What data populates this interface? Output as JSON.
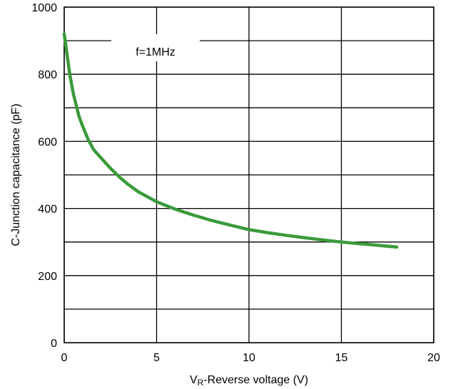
{
  "chart_data": {
    "type": "line",
    "xlabel_main": "V",
    "xlabel_sub": "R",
    "xlabel_rest": "-Reverse voltage (V)",
    "ylabel": "C-Junction capacitance (pF)",
    "annotation": "f=1MHz",
    "xlim": [
      0,
      20
    ],
    "ylim": [
      0,
      1000
    ],
    "x_ticks": [
      0,
      5,
      10,
      15,
      20
    ],
    "y_ticks": [
      0,
      200,
      400,
      600,
      800,
      1000
    ],
    "grid": true,
    "line_color": "#3a9a3a",
    "series": [
      {
        "x": [
          0,
          0.1,
          0.3,
          0.5,
          0.8,
          1.0,
          1.3,
          1.6,
          2.0,
          2.5,
          3.0,
          3.5,
          4.0,
          5.0,
          6.0,
          7.0,
          8.0,
          9.0,
          10.0,
          11.0,
          12.0,
          13.0,
          14.0,
          15.0,
          16.0,
          17.0,
          18.0
        ],
        "y": [
          920,
          880,
          800,
          740,
          675,
          645,
          605,
          575,
          550,
          520,
          493,
          470,
          450,
          420,
          398,
          380,
          364,
          350,
          337,
          328,
          320,
          313,
          306,
          300,
          295,
          290,
          285
        ]
      }
    ]
  }
}
